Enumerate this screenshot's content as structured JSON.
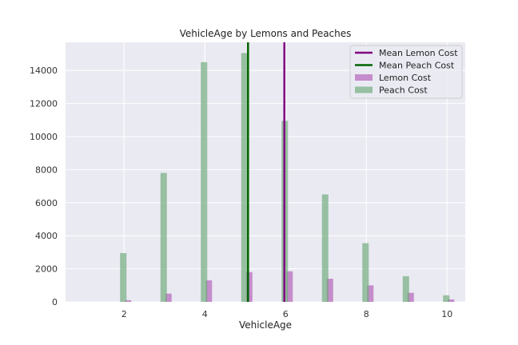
{
  "chart_data": {
    "type": "bar",
    "title": "VehicleAge by Lemons and Peaches",
    "xlabel": "VehicleAge",
    "ylabel": "",
    "xlim": [
      0.55,
      10.45
    ],
    "ylim": [
      0,
      15700
    ],
    "x_ticks": [
      2,
      4,
      6,
      8,
      10
    ],
    "y_ticks": [
      0,
      2000,
      4000,
      6000,
      8000,
      10000,
      12000,
      14000
    ],
    "grid": true,
    "legend_position": "top-right",
    "series": [
      {
        "name": "Lemon Cost",
        "color": "#b05bb6",
        "x": [
          2,
          3,
          4,
          5,
          6,
          7,
          8,
          9,
          10
        ],
        "values": [
          100,
          500,
          1300,
          1800,
          1850,
          1400,
          1000,
          550,
          150
        ]
      },
      {
        "name": "Peach Cost",
        "color": "#6aa874",
        "x": [
          2,
          3,
          4,
          5,
          6,
          7,
          8,
          9,
          10
        ],
        "values": [
          2950,
          7800,
          14500,
          15050,
          10950,
          6500,
          3550,
          1550,
          400
        ]
      }
    ],
    "reference_lines": [
      {
        "name": "Mean Lemon Cost",
        "color": "#800080",
        "x": 5.97
      },
      {
        "name": "Mean Peach Cost",
        "color": "#006400",
        "x": 5.07
      }
    ]
  }
}
